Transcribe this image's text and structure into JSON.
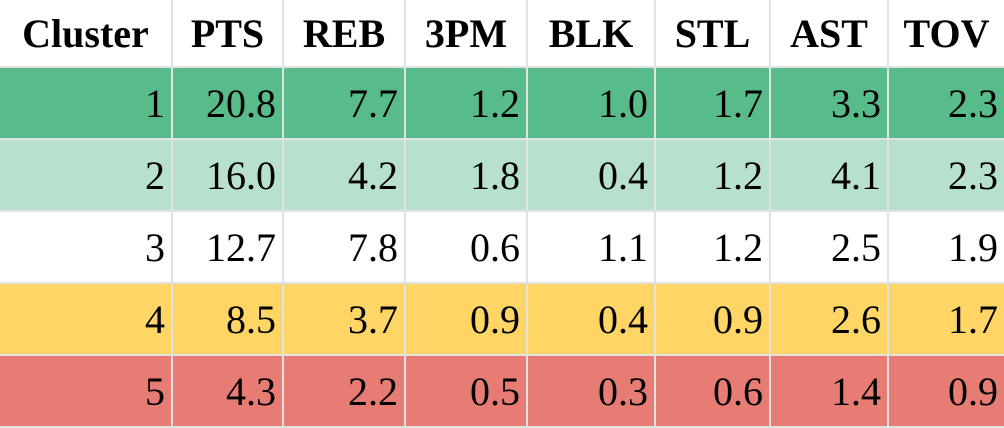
{
  "table": {
    "header": [
      "Cluster",
      "PTS",
      "REB",
      "3PM",
      "BLK",
      "STL",
      "AST",
      "TOV"
    ],
    "rows": [
      [
        "1",
        "20.8",
        "7.7",
        "1.2",
        "1.0",
        "1.7",
        "3.3",
        "2.3"
      ],
      [
        "2",
        "16.0",
        "4.2",
        "1.8",
        "0.4",
        "1.2",
        "4.1",
        "2.3"
      ],
      [
        "3",
        "12.7",
        "7.8",
        "0.6",
        "1.1",
        "1.2",
        "2.5",
        "1.9"
      ],
      [
        "4",
        "8.5",
        "3.7",
        "0.9",
        "0.4",
        "0.9",
        "2.6",
        "1.7"
      ],
      [
        "5",
        "4.3",
        "2.2",
        "0.5",
        "0.3",
        "0.6",
        "1.4",
        "0.9"
      ]
    ]
  }
}
